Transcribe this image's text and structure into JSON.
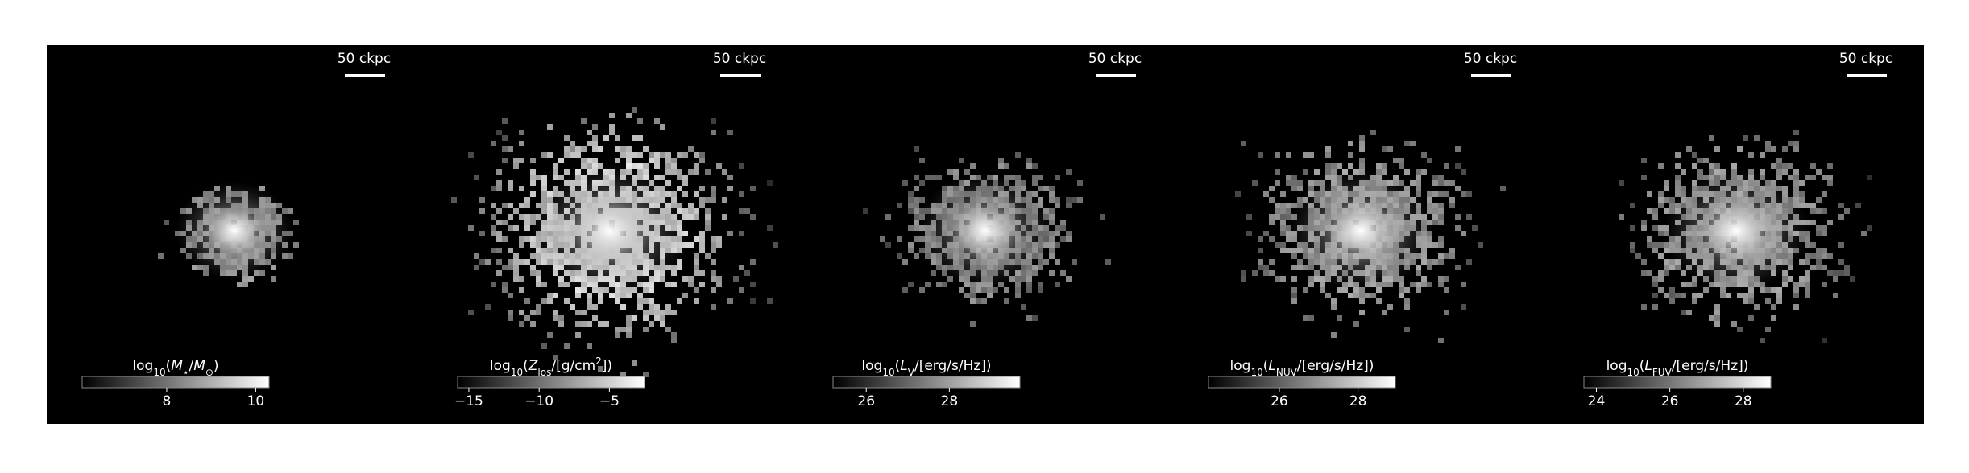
{
  "panels": [
    {
      "scale_bar": "50 ckpc",
      "colorbar": {
        "label": [
          {
            "text": "log"
          },
          {
            "text": "10",
            "style": "sub"
          },
          {
            "text": "("
          },
          {
            "text": "M",
            "style": "italic"
          },
          {
            "text": "⋆",
            "style": "sub"
          },
          {
            "text": "/"
          },
          {
            "text": "M",
            "style": "italic"
          },
          {
            "text": "⊙",
            "style": "sub"
          },
          {
            "text": ")"
          }
        ],
        "lim": [
          6.1,
          10.3
        ],
        "ticks": [
          8,
          10
        ]
      }
    },
    {
      "scale_bar": "50 ckpc",
      "colorbar": {
        "label": [
          {
            "text": "log"
          },
          {
            "text": "10",
            "style": "sub"
          },
          {
            "text": "("
          },
          {
            "text": "Z",
            "style": "italic"
          },
          {
            "text": "los",
            "style": "sub"
          },
          {
            "text": "/[g/cm"
          },
          {
            "text": "2",
            "style": "sup"
          },
          {
            "text": "])"
          }
        ],
        "lim": [
          -15.8,
          -2.5
        ],
        "ticks": [
          {
            "value": -15,
            "label": "−15"
          },
          {
            "value": -10,
            "label": "−10"
          },
          {
            "value": -5,
            "label": "−5"
          }
        ]
      }
    },
    {
      "scale_bar": "50 ckpc",
      "colorbar": {
        "label": [
          {
            "text": "log"
          },
          {
            "text": "10",
            "style": "sub"
          },
          {
            "text": "("
          },
          {
            "text": "L",
            "style": "italic"
          },
          {
            "text": "V",
            "style": "sub"
          },
          {
            "text": "/[erg/s/Hz])"
          }
        ],
        "lim": [
          25.2,
          29.7
        ],
        "ticks": [
          26,
          28
        ]
      }
    },
    {
      "scale_bar": "50 ckpc",
      "colorbar": {
        "label": [
          {
            "text": "log"
          },
          {
            "text": "10",
            "style": "sub"
          },
          {
            "text": "("
          },
          {
            "text": "L",
            "style": "italic"
          },
          {
            "text": "NUV",
            "style": "sub"
          },
          {
            "text": "/[erg/s/Hz])"
          }
        ],
        "lim": [
          24.2,
          28.95
        ],
        "ticks": [
          26,
          28
        ]
      }
    },
    {
      "scale_bar": "50 ckpc",
      "colorbar": {
        "label": [
          {
            "text": "log"
          },
          {
            "text": "10",
            "style": "sub"
          },
          {
            "text": "("
          },
          {
            "text": "L",
            "style": "italic"
          },
          {
            "text": "FUV",
            "style": "sub"
          },
          {
            "text": "/[erg/s/Hz])"
          }
        ],
        "lim": [
          23.66,
          28.75
        ],
        "ticks": [
          24,
          26,
          28
        ]
      }
    }
  ]
}
